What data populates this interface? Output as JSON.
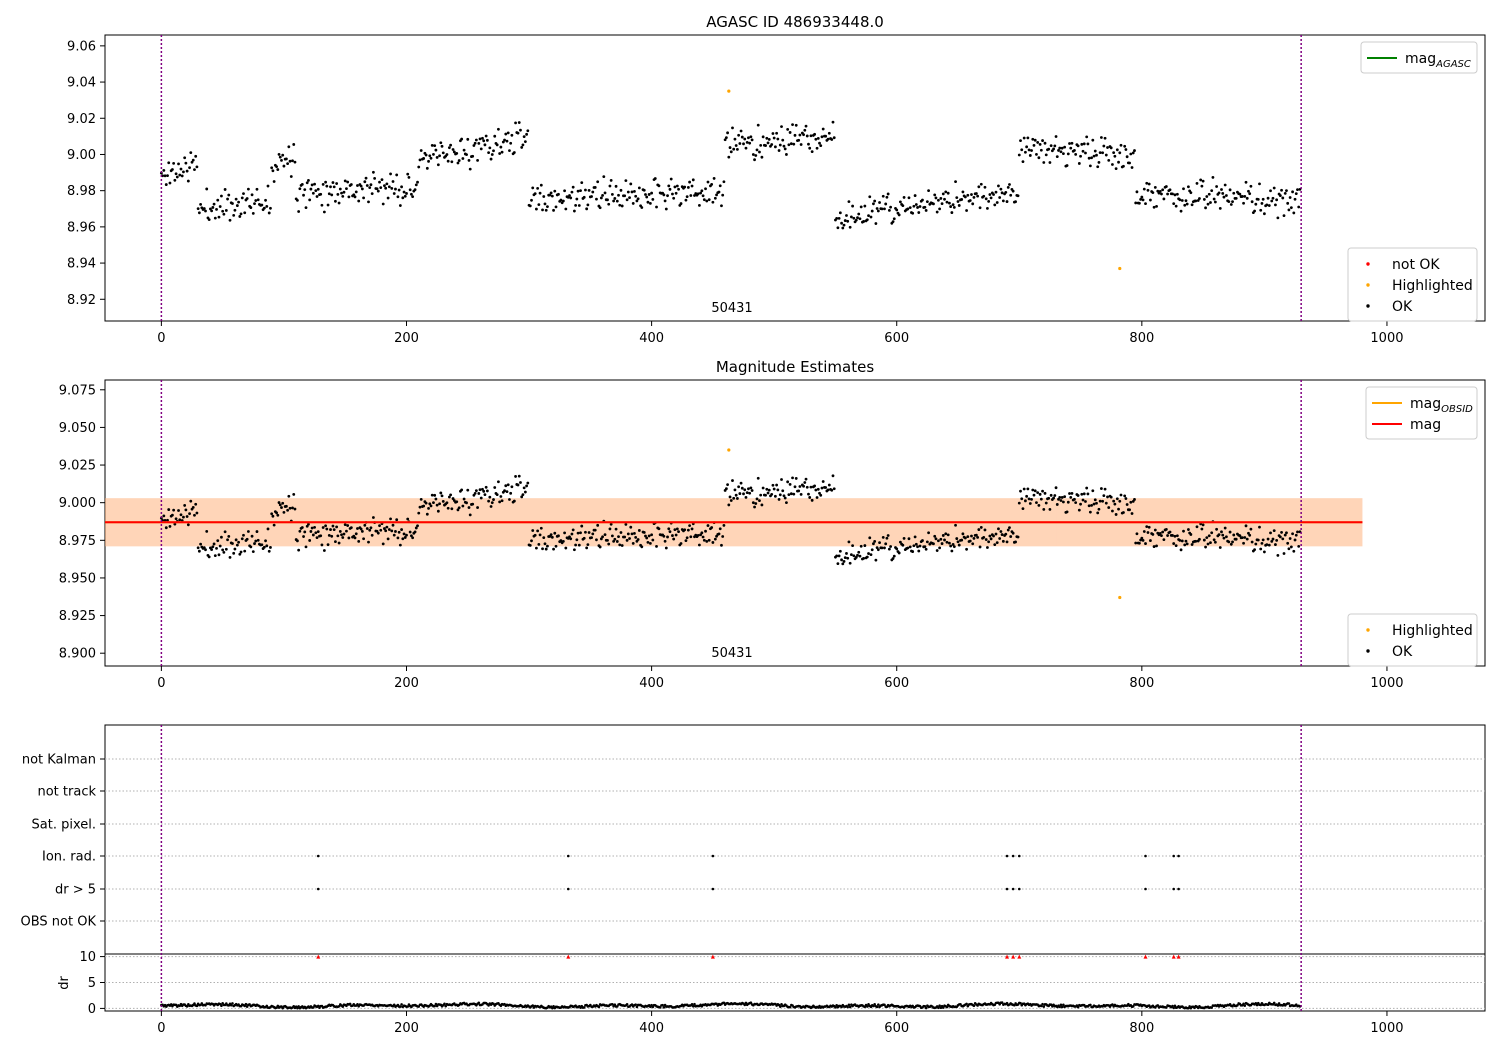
{
  "chart_data": [
    {
      "type": "scatter",
      "title": "AGASC ID 486933448.0",
      "annotation": "50431",
      "xlim": [
        -46,
        1080
      ],
      "ylim": [
        8.908,
        9.066
      ],
      "xticks": [
        0,
        200,
        400,
        600,
        800,
        1000
      ],
      "yticks": [
        8.92,
        8.94,
        8.96,
        8.98,
        9.0,
        9.02,
        9.04,
        9.06
      ],
      "ytick_decimals": 2,
      "vlines": [
        0,
        930
      ],
      "grid": false,
      "legends": [
        {
          "placement": "upper-right",
          "entries": [
            {
              "label": "mag",
              "sub": "AGASC",
              "color": "#008000",
              "marker": "line"
            }
          ]
        },
        {
          "placement": "lower-right",
          "entries": [
            {
              "label": "not OK",
              "color": "#ff0000",
              "marker": "dot"
            },
            {
              "label": "Highlighted",
              "color": "#ffa500",
              "marker": "dot"
            },
            {
              "label": "OK",
              "color": "#000000",
              "marker": "dot"
            }
          ]
        }
      ],
      "series": [
        {
          "name": "OK",
          "color": "#000000",
          "seed": 11,
          "n": 930,
          "x_range": [
            0,
            930
          ]
        },
        {
          "name": "Highlighted",
          "color": "#ffa500",
          "points": [
            [
              463,
              9.035
            ],
            [
              782,
              8.937
            ]
          ]
        }
      ]
    },
    {
      "type": "scatter",
      "title": "Magnitude Estimates",
      "annotation": "50431",
      "xlim": [
        -46,
        1080
      ],
      "ylim": [
        8.8915,
        9.0815
      ],
      "xticks": [
        0,
        200,
        400,
        600,
        800,
        1000
      ],
      "yticks": [
        8.9,
        8.925,
        8.95,
        8.975,
        9.0,
        9.025,
        9.05,
        9.075
      ],
      "ytick_decimals": 3,
      "vlines": [
        0,
        930
      ],
      "grid": false,
      "mag_obsid_band": [
        8.971,
        9.003
      ],
      "mag_band": [
        8.971,
        9.003
      ],
      "mag_obsid": 8.987,
      "mag": 8.987,
      "band_x_range": [
        -46,
        980
      ],
      "legends": [
        {
          "placement": "upper-right",
          "entries": [
            {
              "label": "mag",
              "sub": "OBSID",
              "color": "#ffa500",
              "marker": "line"
            },
            {
              "label": "mag",
              "color": "#ff0000",
              "marker": "line"
            }
          ]
        },
        {
          "placement": "lower-right",
          "entries": [
            {
              "label": "Highlighted",
              "color": "#ffa500",
              "marker": "dot"
            },
            {
              "label": "OK",
              "color": "#000000",
              "marker": "dot"
            }
          ]
        }
      ],
      "series": [
        {
          "name": "OK",
          "color": "#000000",
          "seed": 11,
          "n": 930,
          "x_range": [
            0,
            930
          ]
        },
        {
          "name": "Highlighted",
          "color": "#ffa500",
          "points": [
            [
              463,
              9.035
            ],
            [
              782,
              8.937
            ]
          ]
        }
      ]
    },
    {
      "type": "scatter",
      "xlim": [
        -46,
        1080
      ],
      "xticks": [
        0,
        200,
        400,
        600,
        800,
        1000
      ],
      "vlines": [
        0,
        930
      ],
      "flag_labels": [
        "not Kalman",
        "not track",
        "Sat. pixel.",
        "Ion. rad.",
        "dr > 5",
        "OBS not OK"
      ],
      "flag_points": {
        "Ion. rad.": [
          128,
          332,
          450,
          690,
          695,
          700,
          803,
          826,
          830
        ],
        "dr > 5": [
          128,
          332,
          450,
          690,
          695,
          700,
          803,
          826,
          830
        ]
      },
      "dr_panel": {
        "ylabel": "dr",
        "ylim": [
          -0.5,
          10.5
        ],
        "yticks": [
          0,
          5,
          10
        ],
        "red_at_10": [
          128,
          332,
          450,
          690,
          695,
          700,
          803,
          826,
          830
        ],
        "seed": 5,
        "n": 930
      }
    }
  ]
}
